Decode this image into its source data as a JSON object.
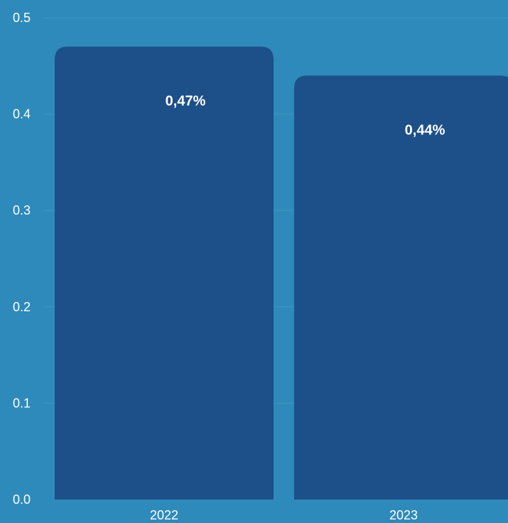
{
  "chart_data": {
    "type": "bar",
    "categories": [
      "2022",
      "2023"
    ],
    "values": [
      0.47,
      0.44
    ],
    "data_labels": [
      "0,47%",
      "0,44%"
    ],
    "y_ticks": [
      "0.0",
      "0.1",
      "0.2",
      "0.3",
      "0.4",
      "0.5"
    ],
    "y_tick_values": [
      0.0,
      0.1,
      0.2,
      0.3,
      0.4,
      0.5
    ],
    "ylim": [
      0,
      0.5
    ],
    "grid": true,
    "legend": "none",
    "title": "",
    "xlabel": "",
    "ylabel": "",
    "colors": {
      "background": "#2e8abb",
      "bar": "#1d4f89",
      "grid": "#3a97c6",
      "text": "#ffffff"
    }
  }
}
